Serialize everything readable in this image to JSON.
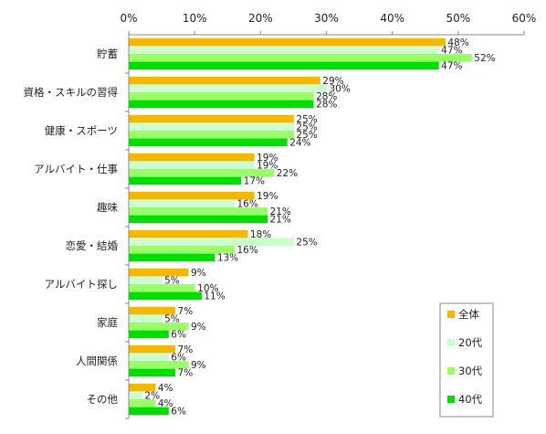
{
  "chart_data": {
    "type": "bar",
    "orientation": "horizontal",
    "title": "",
    "xlabel": "",
    "ylabel": "",
    "xlim": [
      0,
      60
    ],
    "x_ticks": [
      "0%",
      "10%",
      "20%",
      "30%",
      "40%",
      "50%",
      "60%"
    ],
    "x_tick_values": [
      0,
      10,
      20,
      30,
      40,
      50,
      60
    ],
    "axis_position": "top",
    "grid": false,
    "legend_position": "bottom-right",
    "categories": [
      "貯蓄",
      "資格・スキルの習得",
      "健康・スポーツ",
      "アルバイト・仕事",
      "趣味",
      "恋愛・結婚",
      "アルバイト探し",
      "家庭",
      "人間関係",
      "その他"
    ],
    "series": [
      {
        "name": "全体",
        "color": "#f5b800",
        "values": [
          48,
          29,
          25,
          19,
          19,
          18,
          9,
          7,
          7,
          4
        ]
      },
      {
        "name": "20代",
        "color": "#ccffcc",
        "values": [
          47,
          30,
          25,
          19,
          16,
          25,
          5,
          5,
          6,
          2
        ]
      },
      {
        "name": "30代",
        "color": "#99ff66",
        "values": [
          52,
          28,
          25,
          22,
          21,
          16,
          10,
          9,
          9,
          4
        ]
      },
      {
        "name": "40代",
        "color": "#00dd00",
        "values": [
          47,
          28,
          24,
          17,
          21,
          13,
          11,
          6,
          7,
          6
        ]
      }
    ],
    "value_suffix": "%"
  }
}
